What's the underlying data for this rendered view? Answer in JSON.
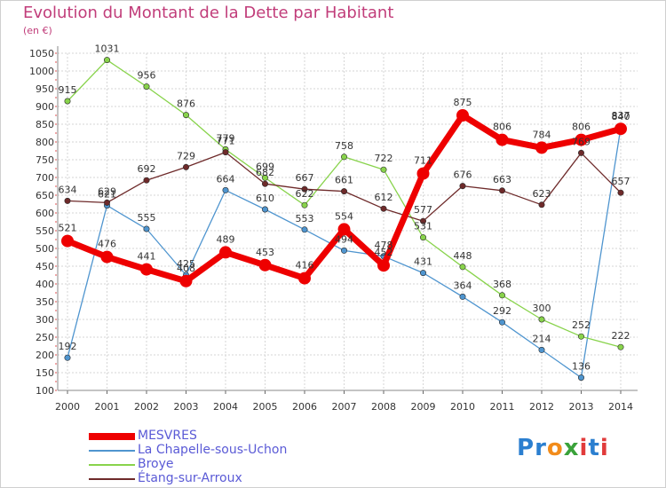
{
  "title": "Evolution du Montant de la Dette par Habitant",
  "subtitle": "(en €)",
  "logo": {
    "text": "Proxiti",
    "letters": [
      "P",
      "r",
      "o",
      "x",
      "i",
      "t",
      "i"
    ],
    "colors": [
      "#2b7fd0",
      "#2b7fd0",
      "#f28c1b",
      "#3aa23a",
      "#e13b3b",
      "#2b7fd0",
      "#e13b3b"
    ]
  },
  "chart_data": {
    "type": "line",
    "x": [
      "2000",
      "2001",
      "2002",
      "2003",
      "2004",
      "2005",
      "2006",
      "2007",
      "2008",
      "2009",
      "2010",
      "2011",
      "2012",
      "2013",
      "2014"
    ],
    "ylim": [
      100,
      1050
    ],
    "yticks": [
      "1050",
      "1000",
      "950",
      "900",
      "850",
      "800",
      "750",
      "700",
      "650",
      "600",
      "550",
      "500",
      "450",
      "400",
      "350",
      "300",
      "250",
      "200",
      "150",
      "100"
    ],
    "grid": true,
    "legend": "bottom-left",
    "series": [
      {
        "name": "La Chapelle-sous-Uchon",
        "color": "#4f95cf",
        "emphasis": false,
        "values": [
          192,
          621,
          555,
          425,
          664,
          610,
          553,
          494,
          478,
          431,
          364,
          292,
          214,
          136,
          840
        ],
        "labels": [
          "192",
          "621",
          "555",
          "425",
          "664",
          "610",
          "553",
          "494",
          "478",
          "431",
          "364",
          "292",
          "214",
          "136",
          "840"
        ]
      },
      {
        "name": "Broye",
        "color": "#88d34b",
        "emphasis": false,
        "values": [
          915,
          1031,
          956,
          876,
          779,
          699,
          622,
          758,
          722,
          531,
          448,
          368,
          300,
          252,
          222
        ],
        "labels": [
          "915",
          "1031",
          "956",
          "876",
          "779",
          "699",
          "622",
          "758",
          "722",
          "531",
          "448",
          "368",
          "300",
          "252",
          "222"
        ]
      },
      {
        "name": "Étang-sur-Arroux",
        "color": "#6e2a2a",
        "emphasis": false,
        "values": [
          634,
          629,
          692,
          729,
          771,
          682,
          667,
          661,
          612,
          577,
          676,
          663,
          623,
          769,
          657
        ],
        "labels": [
          "634",
          "629",
          "692",
          "729",
          "771",
          "682",
          "667",
          "661",
          "612",
          "577",
          "676",
          "663",
          "623",
          "769",
          "657"
        ]
      },
      {
        "name": "MESVRES",
        "color": "#ee0000",
        "emphasis": true,
        "values": [
          521,
          476,
          441,
          408,
          489,
          453,
          416,
          554,
          452,
          711,
          875,
          806,
          784,
          806,
          837
        ],
        "labels": [
          "521",
          "476",
          "441",
          "408",
          "489",
          "453",
          "416",
          "554",
          "452",
          "711",
          "875",
          "806",
          "784",
          "806",
          "837"
        ]
      }
    ],
    "legend_entries": [
      {
        "name": "MESVRES",
        "color": "#ee0000"
      },
      {
        "name": "La Chapelle-sous-Uchon",
        "color": "#4f95cf"
      },
      {
        "name": "Broye",
        "color": "#88d34b"
      },
      {
        "name": "Étang-sur-Arroux",
        "color": "#6e2a2a"
      }
    ]
  }
}
